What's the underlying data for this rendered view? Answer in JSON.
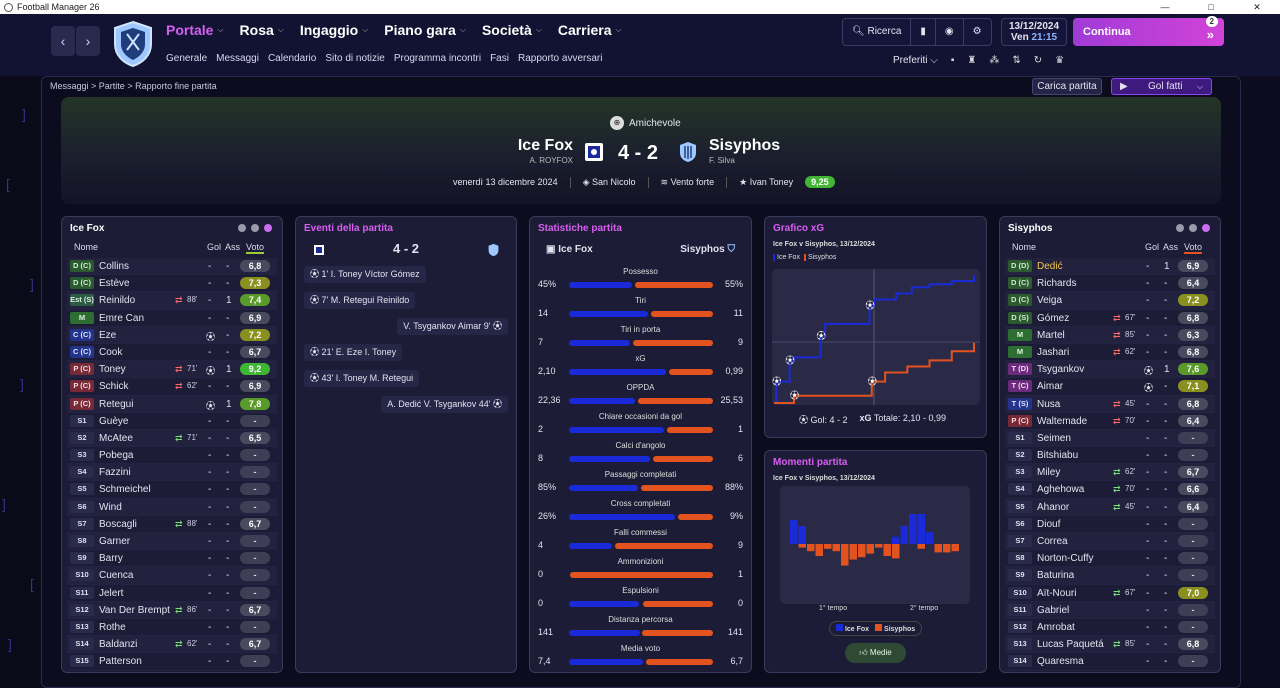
{
  "window": {
    "title": "Football Manager 26",
    "controls": [
      "—",
      "□",
      "✕"
    ]
  },
  "nav": {
    "back": "‹",
    "forward": "›",
    "menu": [
      {
        "label": "Portale",
        "active": true
      },
      {
        "label": "Rosa"
      },
      {
        "label": "Ingaggio"
      },
      {
        "label": "Piano gara"
      },
      {
        "label": "Società"
      },
      {
        "label": "Carriera"
      }
    ],
    "submenu": [
      "Generale",
      "Messaggi",
      "Calendario",
      "Sito di notizie",
      "Programma incontri",
      "Fasi",
      "Rapporto avversari"
    ],
    "search_label": "Ricerca",
    "date": "13/12/2024",
    "day": "Ven",
    "time": "21:15",
    "continue_label": "Continua",
    "continue_badge": "2",
    "preferiti_label": "Preferiti"
  },
  "breadcrumb": [
    "Messaggi",
    "Partite",
    "Rapporto fine partita"
  ],
  "actions": {
    "load_match": "Carica partita",
    "highlights": "Gol fatti"
  },
  "match": {
    "competition": "Amichevole",
    "home": {
      "name": "Ice Fox",
      "manager": "A. ROYFOX"
    },
    "away": {
      "name": "Sisyphos",
      "manager": "F. Silva"
    },
    "score": "4 - 2",
    "date": "venerdì 13 dicembre 2024",
    "stadium": "San Nicolo",
    "weather": "Vento forte",
    "potm_name": "Ivan Toney",
    "potm_rating": "9,25"
  },
  "home_panel": {
    "title": "Ice Fox",
    "headers": {
      "name": "Nome",
      "goals": "Gol",
      "assists": "Ass",
      "rating": "Voto"
    },
    "players": [
      {
        "pos": "D (C)",
        "cls": "D",
        "name": "Collins",
        "sub": "",
        "gol": "-",
        "ass": "-",
        "rating": "6,8",
        "rc": ""
      },
      {
        "pos": "D (C)",
        "cls": "D",
        "name": "Estève",
        "sub": "",
        "gol": "-",
        "ass": "-",
        "rating": "7,3",
        "rc": "y"
      },
      {
        "pos": "Est (S)",
        "cls": "E",
        "name": "Reinildo",
        "sub": "88'",
        "subdir": "out",
        "gol": "-",
        "ass": "1",
        "rating": "7,4",
        "rc": "g"
      },
      {
        "pos": "M",
        "cls": "M",
        "name": "Emre Can",
        "sub": "",
        "gol": "-",
        "ass": "-",
        "rating": "6,9",
        "rc": ""
      },
      {
        "pos": "C (C)",
        "cls": "C",
        "name": "Eze",
        "sub": "",
        "goalicon": true,
        "gol": "",
        "ass": "-",
        "rating": "7,2",
        "rc": "y"
      },
      {
        "pos": "C (C)",
        "cls": "C",
        "name": "Cook",
        "sub": "",
        "gol": "-",
        "ass": "-",
        "rating": "6,7",
        "rc": ""
      },
      {
        "pos": "P (C)",
        "cls": "P",
        "name": "Toney",
        "sub": "71'",
        "subdir": "out",
        "goalicon": true,
        "gol": "",
        "ass": "1",
        "rating": "9,2",
        "rc": "hi"
      },
      {
        "pos": "P (C)",
        "cls": "P",
        "name": "Schick",
        "sub": "62'",
        "subdir": "out",
        "gol": "-",
        "ass": "-",
        "rating": "6,9",
        "rc": ""
      },
      {
        "pos": "P (C)",
        "cls": "P",
        "name": "Retegui",
        "sub": "",
        "goalicon": true,
        "gol": "",
        "ass": "1",
        "rating": "7,8",
        "rc": "g"
      },
      {
        "pos": "S1",
        "cls": "S",
        "name": "Guèye",
        "sub": "",
        "gol": "-",
        "ass": "-",
        "rating": "-",
        "rc": "d"
      },
      {
        "pos": "S2",
        "cls": "S",
        "name": "McAtee",
        "sub": "71'",
        "subdir": "in",
        "gol": "-",
        "ass": "-",
        "rating": "6,5",
        "rc": ""
      },
      {
        "pos": "S3",
        "cls": "S",
        "name": "Pobega",
        "sub": "",
        "gol": "-",
        "ass": "-",
        "rating": "-",
        "rc": "d"
      },
      {
        "pos": "S4",
        "cls": "S",
        "name": "Fazzini",
        "sub": "",
        "gol": "-",
        "ass": "-",
        "rating": "-",
        "rc": "d"
      },
      {
        "pos": "S5",
        "cls": "S",
        "name": "Schmeichel",
        "sub": "",
        "gol": "-",
        "ass": "-",
        "rating": "-",
        "rc": "d"
      },
      {
        "pos": "S6",
        "cls": "S",
        "name": "Wind",
        "sub": "",
        "gol": "-",
        "ass": "-",
        "rating": "-",
        "rc": "d"
      },
      {
        "pos": "S7",
        "cls": "S",
        "name": "Boscagli",
        "sub": "88'",
        "subdir": "in",
        "gol": "-",
        "ass": "-",
        "rating": "6,7",
        "rc": ""
      },
      {
        "pos": "S8",
        "cls": "S",
        "name": "Garner",
        "sub": "",
        "gol": "-",
        "ass": "-",
        "rating": "-",
        "rc": "d"
      },
      {
        "pos": "S9",
        "cls": "S",
        "name": "Barry",
        "sub": "",
        "gol": "-",
        "ass": "-",
        "rating": "-",
        "rc": "d"
      },
      {
        "pos": "S10",
        "cls": "S",
        "name": "Cuenca",
        "sub": "",
        "gol": "-",
        "ass": "-",
        "rating": "-",
        "rc": "d"
      },
      {
        "pos": "S11",
        "cls": "S",
        "name": "Jelert",
        "sub": "",
        "gol": "-",
        "ass": "-",
        "rating": "-",
        "rc": "d"
      },
      {
        "pos": "S12",
        "cls": "S",
        "name": "Van Der Brempt",
        "sub": "86'",
        "subdir": "in",
        "gol": "-",
        "ass": "-",
        "rating": "6,7",
        "rc": ""
      },
      {
        "pos": "S13",
        "cls": "S",
        "name": "Rothe",
        "sub": "",
        "gol": "-",
        "ass": "-",
        "rating": "-",
        "rc": "d"
      },
      {
        "pos": "S14",
        "cls": "S",
        "name": "Baldanzi",
        "sub": "62'",
        "subdir": "in",
        "gol": "-",
        "ass": "-",
        "rating": "6,7",
        "rc": ""
      },
      {
        "pos": "S15",
        "cls": "S",
        "name": "Patterson",
        "sub": "",
        "gol": "-",
        "ass": "-",
        "rating": "-",
        "rc": "d"
      }
    ]
  },
  "events_panel": {
    "title": "Eventi della partita",
    "score": "4 - 2",
    "events": [
      {
        "side": "home",
        "text": "1' I. Toney Víctor Gómez"
      },
      {
        "side": "home",
        "text": "7' M. Retegui Reinildo"
      },
      {
        "side": "away",
        "text": "V. Tsygankov Aimar 9'"
      },
      {
        "side": "home",
        "text": "21' E. Eze I. Toney"
      },
      {
        "side": "home",
        "text": "43' I. Toney M. Retegui"
      },
      {
        "side": "away",
        "text": "A. Dedić V. Tsygankov 44'"
      }
    ]
  },
  "stats_panel": {
    "title": "Statistiche partita",
    "home": "Ice Fox",
    "away": "Sisyphos",
    "stats": [
      {
        "label": "Possesso",
        "home": "45%",
        "away": "55%",
        "h": 45,
        "a": 55
      },
      {
        "label": "Tiri",
        "home": "14",
        "away": "11",
        "h": 14,
        "a": 11
      },
      {
        "label": "Tiri in porta",
        "home": "7",
        "away": "9",
        "h": 7,
        "a": 9
      },
      {
        "label": "xG",
        "home": "2,10",
        "away": "0,99",
        "h": 2.1,
        "a": 0.99
      },
      {
        "label": "OPPDA",
        "home": "22,36",
        "away": "25,53",
        "h": 22.36,
        "a": 25.53
      },
      {
        "label": "Chiare occasioni da gol",
        "home": "2",
        "away": "1",
        "h": 2,
        "a": 1
      },
      {
        "label": "Calci d'angolo",
        "home": "8",
        "away": "6",
        "h": 8,
        "a": 6
      },
      {
        "label": "Passaggi completati",
        "home": "85%",
        "away": "88%",
        "h": 85,
        "a": 88
      },
      {
        "label": "Cross completati",
        "home": "26%",
        "away": "9%",
        "h": 26,
        "a": 9
      },
      {
        "label": "Falli commessi",
        "home": "4",
        "away": "9",
        "h": 4,
        "a": 9
      },
      {
        "label": "Ammonizioni",
        "home": "0",
        "away": "1",
        "h": 0,
        "a": 1
      },
      {
        "label": "Espulsioni",
        "home": "0",
        "away": "0",
        "h": 0,
        "a": 0
      },
      {
        "label": "Distanza percorsa",
        "home": "141",
        "away": "141",
        "h": 141,
        "a": 141
      },
      {
        "label": "Media voto",
        "home": "7,4",
        "away": "6,7",
        "h": 7.4,
        "a": 6.7
      }
    ]
  },
  "xg_panel": {
    "title": "Grafico xG",
    "subtitle": "Ice Fox v Sisyphos, 13/12/2024",
    "legend_home": "Ice Fox",
    "legend_away": "Sisyphos",
    "goals_label": "Gol: 4 - 2",
    "xg_total_label": "xG",
    "xg_total": "Totale: 2,10 - 0,99"
  },
  "moments_panel": {
    "title": "Momenti partita",
    "subtitle": "Ice Fox v Sisyphos, 13/12/2024",
    "first_half": "1° tempo",
    "second_half": "2° tempo",
    "legend_home": "Ice Fox",
    "legend_away": "Sisyphos",
    "button": "Medie"
  },
  "away_panel": {
    "title": "Sisyphos",
    "headers": {
      "name": "Nome",
      "goals": "Gol",
      "assists": "Ass",
      "rating": "Voto"
    },
    "players": [
      {
        "pos": "D (D)",
        "cls": "D",
        "name": "Dedić",
        "sub": "",
        "gol": "-",
        "ass": "1",
        "rating": "6,9",
        "rc": "",
        "hl": true
      },
      {
        "pos": "D (C)",
        "cls": "D",
        "name": "Richards",
        "sub": "",
        "gol": "-",
        "ass": "-",
        "rating": "6,4",
        "rc": ""
      },
      {
        "pos": "D (C)",
        "cls": "D",
        "name": "Veiga",
        "sub": "",
        "gol": "-",
        "ass": "-",
        "rating": "7,2",
        "rc": "y"
      },
      {
        "pos": "D (S)",
        "cls": "D",
        "name": "Gómez",
        "sub": "67'",
        "subdir": "out",
        "gol": "-",
        "ass": "-",
        "rating": "6,8",
        "rc": ""
      },
      {
        "pos": "M",
        "cls": "M",
        "name": "Martel",
        "sub": "85'",
        "subdir": "out",
        "gol": "-",
        "ass": "-",
        "rating": "6,3",
        "rc": ""
      },
      {
        "pos": "M",
        "cls": "M",
        "name": "Jashari",
        "sub": "62'",
        "subdir": "out",
        "gol": "-",
        "ass": "-",
        "rating": "6,8",
        "rc": ""
      },
      {
        "pos": "T (D)",
        "cls": "T",
        "name": "Tsygankov",
        "sub": "",
        "goalicon": true,
        "gol": "",
        "ass": "1",
        "rating": "7,6",
        "rc": "g"
      },
      {
        "pos": "T (C)",
        "cls": "T",
        "name": "Aimar",
        "sub": "",
        "goalicon": true,
        "gol": "",
        "ass": "-",
        "rating": "7,1",
        "rc": "y"
      },
      {
        "pos": "T (S)",
        "cls": "C",
        "name": "Nusa",
        "sub": "45'",
        "subdir": "out",
        "gol": "-",
        "ass": "-",
        "rating": "6,8",
        "rc": ""
      },
      {
        "pos": "P (C)",
        "cls": "P",
        "name": "Waltemade",
        "sub": "70'",
        "subdir": "out",
        "gol": "-",
        "ass": "-",
        "rating": "6,4",
        "rc": ""
      },
      {
        "pos": "S1",
        "cls": "S",
        "name": "Seimen",
        "sub": "",
        "gol": "-",
        "ass": "-",
        "rating": "-",
        "rc": "d"
      },
      {
        "pos": "S2",
        "cls": "S",
        "name": "Bitshiabu",
        "sub": "",
        "gol": "-",
        "ass": "-",
        "rating": "-",
        "rc": "d"
      },
      {
        "pos": "S3",
        "cls": "S",
        "name": "Miley",
        "sub": "62'",
        "subdir": "in",
        "gol": "-",
        "ass": "-",
        "rating": "6,7",
        "rc": ""
      },
      {
        "pos": "S4",
        "cls": "S",
        "name": "Aghehowa",
        "sub": "70'",
        "subdir": "in",
        "gol": "-",
        "ass": "-",
        "rating": "6,6",
        "rc": ""
      },
      {
        "pos": "S5",
        "cls": "S",
        "name": "Ahanor",
        "sub": "45'",
        "subdir": "in",
        "gol": "-",
        "ass": "-",
        "rating": "6,4",
        "rc": ""
      },
      {
        "pos": "S6",
        "cls": "S",
        "name": "Diouf",
        "sub": "",
        "gol": "-",
        "ass": "-",
        "rating": "-",
        "rc": "d"
      },
      {
        "pos": "S7",
        "cls": "S",
        "name": "Correa",
        "sub": "",
        "gol": "-",
        "ass": "-",
        "rating": "-",
        "rc": "d"
      },
      {
        "pos": "S8",
        "cls": "S",
        "name": "Norton-Cuffy",
        "sub": "",
        "gol": "-",
        "ass": "-",
        "rating": "-",
        "rc": "d"
      },
      {
        "pos": "S9",
        "cls": "S",
        "name": "Baturina",
        "sub": "",
        "gol": "-",
        "ass": "-",
        "rating": "-",
        "rc": "d"
      },
      {
        "pos": "S10",
        "cls": "S",
        "name": "Aït-Nouri",
        "sub": "67'",
        "subdir": "in",
        "gol": "-",
        "ass": "-",
        "rating": "7,0",
        "rc": "y"
      },
      {
        "pos": "S11",
        "cls": "S",
        "name": "Gabriel",
        "sub": "",
        "gol": "-",
        "ass": "-",
        "rating": "-",
        "rc": "d"
      },
      {
        "pos": "S12",
        "cls": "S",
        "name": "Amrobat",
        "sub": "",
        "gol": "-",
        "ass": "-",
        "rating": "-",
        "rc": "d"
      },
      {
        "pos": "S13",
        "cls": "S",
        "name": "Lucas Paquetá",
        "sub": "85'",
        "subdir": "in",
        "gol": "-",
        "ass": "-",
        "rating": "6,8",
        "rc": ""
      },
      {
        "pos": "S14",
        "cls": "S",
        "name": "Quaresma",
        "sub": "",
        "gol": "-",
        "ass": "-",
        "rating": "-",
        "rc": "d"
      }
    ]
  },
  "chart_data": [
    {
      "type": "line",
      "title": "Grafico xG",
      "series": [
        {
          "name": "Ice Fox",
          "color": "#1b2ad8",
          "x": [
            0,
            1,
            7,
            9,
            21,
            23,
            43,
            45,
            55,
            62,
            70,
            80,
            90
          ],
          "y": [
            0,
            0.35,
            0.7,
            0.75,
            1.1,
            1.3,
            1.6,
            1.7,
            1.8,
            1.9,
            1.95,
            2.0,
            2.1
          ]
        },
        {
          "name": "Sisyphos",
          "color": "#e35320",
          "x": [
            0,
            9,
            20,
            44,
            50,
            60,
            70,
            80,
            90
          ],
          "y": [
            0,
            0.12,
            0.12,
            0.35,
            0.5,
            0.6,
            0.7,
            0.85,
            0.99
          ]
        }
      ]
    },
    {
      "type": "bar",
      "title": "Momenti partita",
      "series": [
        {
          "name": "Ice Fox",
          "color": "#1b2ad8",
          "values": [
            2,
            1.5,
            0,
            0,
            0,
            0,
            0,
            0,
            0,
            0,
            0,
            0,
            0.6,
            1.5,
            2.5,
            2.5,
            1.0,
            0,
            0,
            0
          ]
        },
        {
          "name": "Sisyphos",
          "color": "#e35320",
          "values": [
            0,
            0.3,
            0.6,
            1.0,
            0.4,
            0.6,
            1.8,
            1.3,
            1.1,
            0.8,
            0.3,
            1.0,
            1.2,
            0,
            0,
            0.4,
            0,
            0.7,
            0.7,
            0.6
          ]
        }
      ]
    }
  ]
}
